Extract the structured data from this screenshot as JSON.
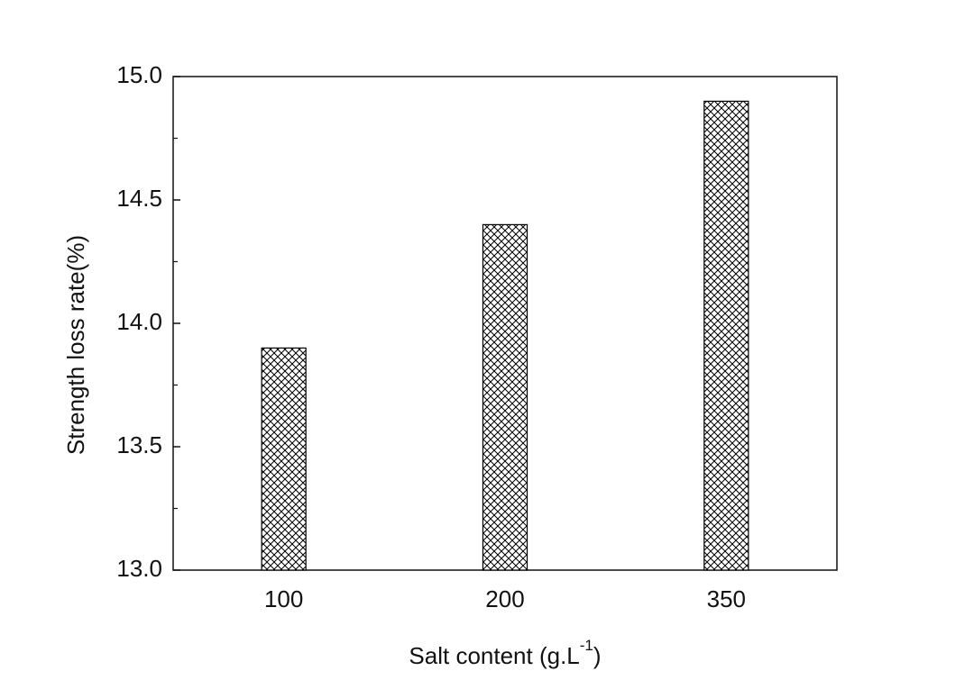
{
  "chart_data": {
    "type": "bar",
    "categories": [
      "100",
      "200",
      "350"
    ],
    "values": [
      13.9,
      14.4,
      14.9
    ],
    "color": "#000000",
    "pattern": "crosshatch",
    "ylim": [
      13,
      15
    ],
    "yticks": [
      {
        "value": 13,
        "label": "13.0"
      },
      13.5,
      {
        "value": 14,
        "label": "14.0"
      },
      14.5,
      {
        "value": 15,
        "label": "15.0"
      }
    ],
    "y_label": "Strength loss rate(%)",
    "x_label_parts": [
      "Salt content (g.L",
      "-1",
      ")"
    ],
    "grid": false
  }
}
